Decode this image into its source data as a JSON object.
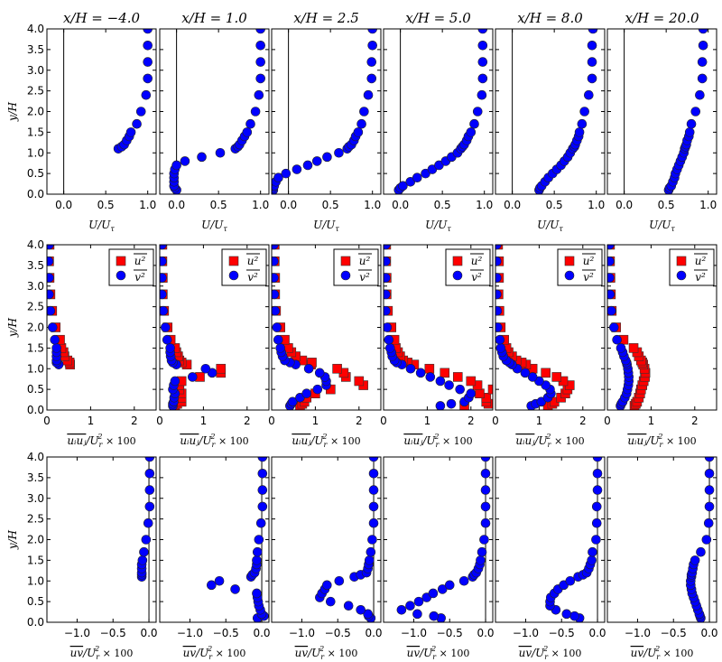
{
  "chart_data": {
    "type": "scatter",
    "grid": false,
    "colors": {
      "u2": "#ff0000",
      "v2": "#0000ff",
      "U": "#0000ff",
      "uv": "#0000ff"
    },
    "columns": [
      "x/H = −4.0",
      "x/H = 1.0",
      "x/H = 2.5",
      "x/H = 5.0",
      "x/H = 8.0",
      "x/H = 20.0"
    ],
    "ylabel": "y/H",
    "ylim": [
      0,
      4.0
    ],
    "yticks": [
      "0.0",
      "0.5",
      "1.0",
      "1.5",
      "2.0",
      "2.5",
      "3.0",
      "3.5",
      "4.0"
    ],
    "y_levels": [
      0.1,
      0.15,
      0.2,
      0.3,
      0.4,
      0.5,
      0.6,
      0.7,
      0.8,
      0.9,
      1.0,
      1.1,
      1.15,
      1.2,
      1.3,
      1.4,
      1.5,
      1.7,
      2.0,
      2.4,
      2.8,
      3.2,
      3.6,
      4.0
    ],
    "y_levels_upstream": [
      1.1,
      1.15,
      1.2,
      1.3,
      1.4,
      1.5,
      1.7,
      2.0,
      2.4,
      2.8,
      3.2,
      3.6,
      4.0
    ],
    "rows": [
      {
        "quantity": "U",
        "xlabel": {
          "main": "U/U",
          "sub": "τ"
        },
        "xlim": [
          -0.2,
          1.1
        ],
        "xticks": [
          0,
          0.5,
          1.0
        ],
        "xtick_labels": [
          "0.0",
          "0.5",
          "1.0"
        ],
        "zero_line": true,
        "series": [
          [
            0.65,
            0.69,
            0.72,
            0.75,
            0.78,
            0.8,
            0.87,
            0.92,
            0.98,
            1,
            1,
            1,
            1
          ],
          [
            0.0,
            -0.02,
            -0.03,
            -0.03,
            -0.03,
            -0.03,
            -0.02,
            0.0,
            0.1,
            0.3,
            0.52,
            0.7,
            0.73,
            0.75,
            0.78,
            0.81,
            0.84,
            0.88,
            0.94,
            0.98,
            1,
            1,
            1,
            1
          ],
          [
            -0.18,
            -0.18,
            -0.17,
            -0.15,
            -0.12,
            -0.03,
            0.1,
            0.23,
            0.34,
            0.46,
            0.6,
            0.7,
            0.72,
            0.75,
            0.78,
            0.8,
            0.83,
            0.87,
            0.9,
            0.95,
            0.99,
            0.99,
            1,
            1
          ],
          [
            -0.02,
            0.0,
            0.03,
            0.12,
            0.2,
            0.3,
            0.38,
            0.46,
            0.54,
            0.61,
            0.68,
            0.72,
            0.74,
            0.76,
            0.79,
            0.81,
            0.84,
            0.88,
            0.92,
            0.97,
            0.98,
            0.98,
            0.98,
            0.98
          ],
          [
            0.32,
            0.33,
            0.35,
            0.39,
            0.43,
            0.48,
            0.53,
            0.58,
            0.62,
            0.66,
            0.69,
            0.72,
            0.74,
            0.75,
            0.77,
            0.79,
            0.8,
            0.83,
            0.86,
            0.91,
            0.95,
            0.95,
            0.95,
            0.96
          ],
          [
            0.53,
            0.54,
            0.56,
            0.58,
            0.6,
            0.61,
            0.63,
            0.65,
            0.67,
            0.69,
            0.71,
            0.72,
            0.73,
            0.74,
            0.75,
            0.77,
            0.78,
            0.8,
            0.85,
            0.9,
            0.93,
            0.93,
            0.94,
            0.94
          ]
        ]
      },
      {
        "quantity": "stress",
        "xlabel": {
          "over": "uᵢuⱼ",
          "main": "/U",
          "sub": "r",
          "sup": "2",
          "suffix": "× 100"
        },
        "xlim": [
          0,
          2.5
        ],
        "xticks": [
          0,
          1,
          2
        ],
        "xtick_labels": [
          "0",
          "1",
          "2"
        ],
        "zero_line": false,
        "legend": {
          "placement": "top-right",
          "entries": [
            "u²",
            "v²"
          ]
        },
        "u2": [
          [
            0.53,
            0.52,
            0.47,
            0.4,
            0.38,
            0.33,
            0.3,
            0.2,
            0.12,
            0.08,
            0.06,
            0.05,
            0.06
          ],
          [
            0.35,
            0.4,
            0.5,
            0.5,
            0.5,
            0.45,
            0.45,
            0.5,
            0.92,
            1.4,
            1.4,
            0.62,
            0.5,
            0.45,
            0.42,
            0.38,
            0.35,
            0.25,
            0.18,
            0.1,
            0.07,
            0.07,
            0.06,
            0.06
          ],
          [
            0.65,
            0.7,
            0.75,
            0.8,
            1.0,
            1.35,
            2.1,
            2.0,
            1.7,
            1.65,
            1.5,
            0.9,
            0.92,
            0.7,
            0.55,
            0.45,
            0.38,
            0.3,
            0.2,
            0.1,
            0.08,
            0.08,
            0.07,
            0.07
          ],
          [
            1.85,
            2.4,
            2.35,
            2.35,
            2.2,
            2.5,
            2.15,
            2.0,
            1.7,
            1.4,
            1.05,
            0.7,
            0.55,
            0.45,
            0.38,
            0.33,
            0.28,
            0.25,
            0.18,
            0.1,
            0.07,
            0.07,
            0.06,
            0.06
          ],
          [
            1.2,
            1.3,
            1.35,
            1.5,
            1.6,
            1.65,
            1.7,
            1.55,
            1.4,
            1.15,
            0.85,
            0.7,
            0.6,
            0.48,
            0.38,
            0.3,
            0.25,
            0.2,
            0.12,
            0.09,
            0.07,
            0.08,
            0.08,
            0.06
          ],
          [
            0.62,
            0.65,
            0.68,
            0.72,
            0.75,
            0.77,
            0.8,
            0.83,
            0.86,
            0.87,
            0.85,
            0.82,
            0.8,
            0.77,
            0.72,
            0.68,
            0.6,
            0.37,
            0.2,
            0.1,
            0.08,
            0.07,
            0.06,
            0.06
          ]
        ],
        "v2": [
          [
            0.27,
            0.22,
            0.22,
            0.22,
            0.22,
            0.22,
            0.18,
            0.13,
            0.08,
            0.05,
            0.05,
            0.04,
            0.05
          ],
          [
            0.3,
            0.3,
            0.32,
            0.33,
            0.35,
            0.3,
            0.32,
            0.35,
            0.75,
            1.2,
            1.05,
            0.38,
            0.3,
            0.27,
            0.25,
            0.24,
            0.24,
            0.17,
            0.13,
            0.08,
            0.05,
            0.05,
            0.05,
            0.05
          ],
          [
            0.42,
            0.45,
            0.48,
            0.65,
            0.8,
            1.05,
            1.25,
            1.25,
            1.22,
            1.1,
            0.85,
            0.55,
            0.42,
            0.3,
            0.25,
            0.22,
            0.2,
            0.15,
            0.12,
            0.08,
            0.06,
            0.05,
            0.05,
            0.05
          ],
          [
            1.3,
            1.55,
            1.85,
            1.95,
            2.0,
            1.75,
            1.5,
            1.3,
            1.07,
            0.85,
            0.62,
            0.42,
            0.3,
            0.25,
            0.2,
            0.18,
            0.15,
            0.12,
            0.08,
            0.05,
            0.05,
            0.05,
            0.05,
            0.05
          ],
          [
            0.82,
            0.92,
            1.05,
            1.2,
            1.27,
            1.25,
            1.15,
            1.0,
            0.85,
            0.68,
            0.5,
            0.38,
            0.32,
            0.25,
            0.18,
            0.15,
            0.12,
            0.1,
            0.05,
            0.04,
            0.03,
            0.03,
            0.03,
            0.03
          ],
          [
            0.3,
            0.32,
            0.35,
            0.4,
            0.44,
            0.46,
            0.48,
            0.49,
            0.49,
            0.48,
            0.47,
            0.45,
            0.44,
            0.42,
            0.38,
            0.35,
            0.31,
            0.22,
            0.15,
            0.09,
            0.06,
            0.05,
            0.05,
            0.05
          ]
        ]
      },
      {
        "quantity": "uv",
        "xlabel": {
          "over": "uv",
          "main": "/U",
          "sub": "r",
          "sup": "2",
          "suffix": "× 100"
        },
        "xlim": [
          -1.42,
          0.1
        ],
        "xticks": [
          -1.0,
          -0.5,
          0.0
        ],
        "xtick_labels": [
          "−1.0",
          "−0.5",
          "0.0"
        ],
        "zero_line": true,
        "series": [
          [
            -0.1,
            -0.1,
            -0.1,
            -0.1,
            -0.1,
            -0.09,
            -0.07,
            -0.04,
            -0.01,
            0.01,
            0.01,
            0.01,
            0.01
          ],
          [
            -0.06,
            0.03,
            0.0,
            -0.02,
            -0.04,
            -0.05,
            -0.06,
            -0.07,
            -0.37,
            -0.7,
            -0.59,
            -0.15,
            -0.13,
            -0.1,
            -0.08,
            -0.07,
            -0.07,
            -0.06,
            -0.04,
            -0.01,
            0.01,
            0.01,
            0.01,
            0.01
          ],
          [
            -0.04,
            -0.07,
            -0.08,
            -0.18,
            -0.35,
            -0.6,
            -0.75,
            -0.72,
            -0.68,
            -0.65,
            -0.48,
            -0.27,
            -0.18,
            -0.1,
            -0.08,
            -0.07,
            -0.06,
            -0.04,
            -0.02,
            0,
            0,
            0,
            0,
            0
          ],
          [
            -0.62,
            -0.72,
            -0.95,
            -1.17,
            -1.05,
            -0.93,
            -0.82,
            -0.73,
            -0.6,
            -0.5,
            -0.3,
            -0.18,
            -0.16,
            -0.13,
            -0.1,
            -0.08,
            -0.07,
            -0.05,
            -0.02,
            0,
            0,
            0,
            0,
            0
          ],
          [
            -0.25,
            -0.32,
            -0.43,
            -0.58,
            -0.66,
            -0.66,
            -0.65,
            -0.6,
            -0.55,
            -0.47,
            -0.38,
            -0.27,
            -0.2,
            -0.15,
            -0.12,
            -0.1,
            -0.08,
            -0.07,
            -0.02,
            -0.01,
            -0.01,
            0,
            0,
            0
          ],
          [
            -0.12,
            -0.13,
            -0.14,
            -0.16,
            -0.18,
            -0.2,
            -0.22,
            -0.24,
            -0.25,
            -0.26,
            -0.26,
            -0.25,
            -0.25,
            -0.24,
            -0.23,
            -0.22,
            -0.2,
            -0.12,
            -0.04,
            -0.01,
            0,
            0,
            0,
            0
          ]
        ]
      }
    ]
  }
}
